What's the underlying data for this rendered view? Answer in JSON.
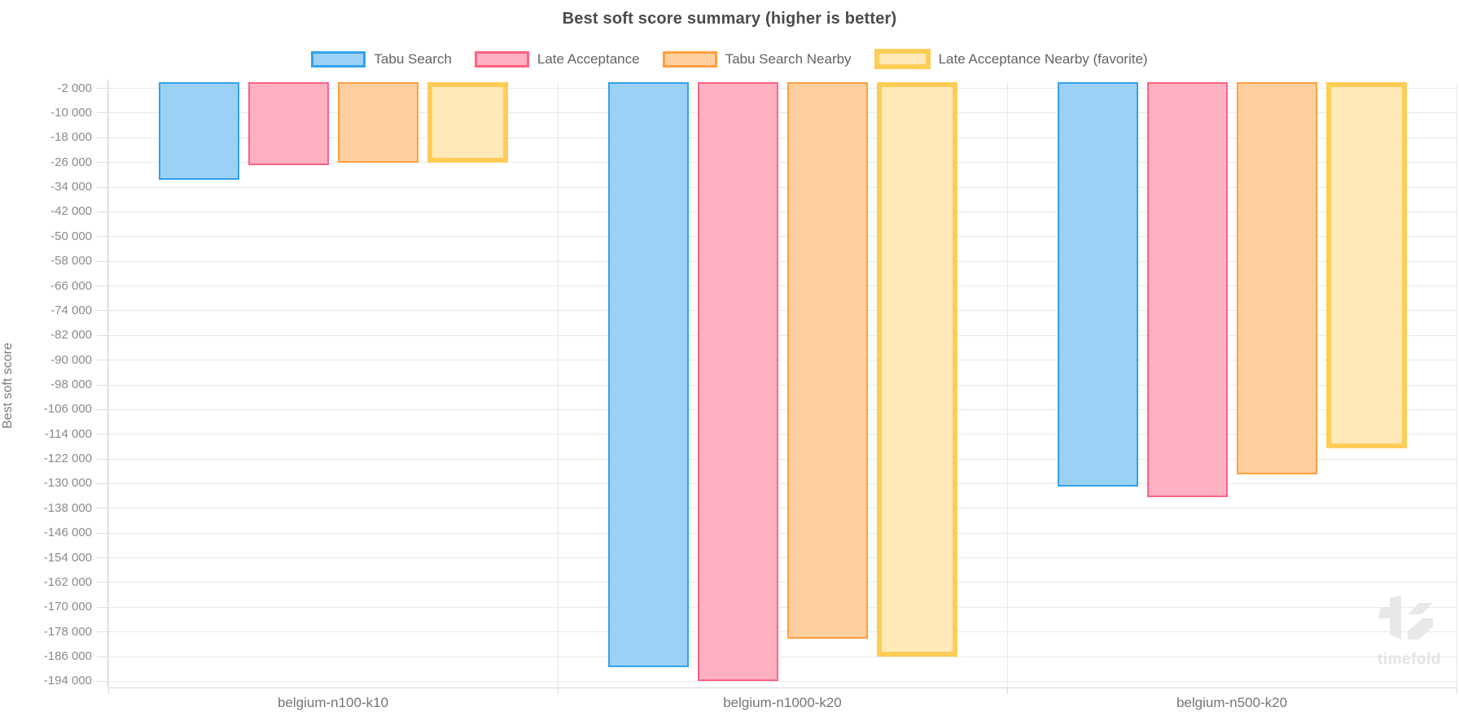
{
  "title": "Best soft score summary (higher is better)",
  "y_axis": {
    "title": "Best soft score",
    "tick_values": [
      -2000,
      -10000,
      -18000,
      -26000,
      -34000,
      -42000,
      -50000,
      -58000,
      -66000,
      -74000,
      -82000,
      -90000,
      -98000,
      -106000,
      -114000,
      -122000,
      -130000,
      -138000,
      -146000,
      -154000,
      -162000,
      -170000,
      -178000,
      -186000,
      -194000
    ],
    "tick_labels": [
      "-2 000",
      "-10 000",
      "-18 000",
      "-26 000",
      "-34 000",
      "-42 000",
      "-50 000",
      "-58 000",
      "-66 000",
      "-74 000",
      "-82 000",
      "-90 000",
      "-98 000",
      "-106 000",
      "-114 000",
      "-122 000",
      "-130 000",
      "-138 000",
      "-146 000",
      "-154 000",
      "-162 000",
      "-170 000",
      "-178 000",
      "-186 000",
      "-194 000"
    ]
  },
  "x_axis": {
    "categories": [
      "belgium-n100-k10",
      "belgium-n1000-k20",
      "belgium-n500-k20"
    ]
  },
  "watermark": {
    "text": "timefold"
  },
  "colors": {
    "grid": "#e9e9e9",
    "axis_border": "#d7d7d7"
  },
  "chart_data": {
    "type": "bar",
    "title": "Best soft score summary (higher is better)",
    "ylabel": "Best soft score",
    "xlabel": "",
    "categories": [
      "belgium-n100-k10",
      "belgium-n1000-k20",
      "belgium-n500-k20"
    ],
    "series": [
      {
        "name": "Tabu Search",
        "values": [
          -31500,
          -189500,
          -130900
        ],
        "fill": "#9BD1F5",
        "border": "#36A2EB",
        "border_width": 2,
        "favorite": false
      },
      {
        "name": "Late Acceptance",
        "values": [
          -26800,
          -193800,
          -134300
        ],
        "fill": "#FFB1C2",
        "border": "#FF6384",
        "border_width": 2,
        "favorite": false
      },
      {
        "name": "Tabu Search Nearby",
        "values": [
          -26000,
          -180300,
          -126900
        ],
        "fill": "#FFCFA0",
        "border": "#FF9F40",
        "border_width": 2,
        "favorite": false
      },
      {
        "name": "Late Acceptance Nearby (favorite)",
        "values": [
          -26200,
          -185900,
          -118600
        ],
        "fill": "#FFE9B8",
        "border": "#FFCD56",
        "border_width": 6,
        "favorite": true
      }
    ],
    "ylim": [
      -196000,
      0
    ],
    "ytick_step": 8000,
    "grid": true,
    "legend_position": "top",
    "baseline": 0
  }
}
